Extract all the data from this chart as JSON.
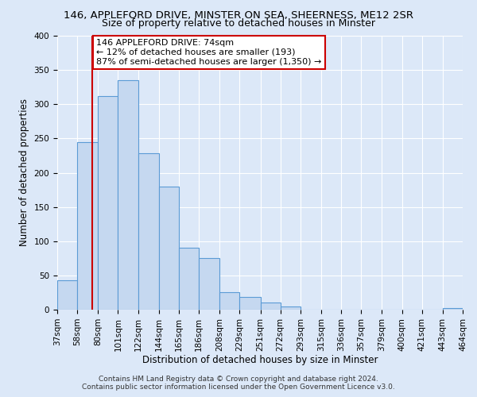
{
  "title": "146, APPLEFORD DRIVE, MINSTER ON SEA, SHEERNESS, ME12 2SR",
  "subtitle": "Size of property relative to detached houses in Minster",
  "xlabel": "Distribution of detached houses by size in Minster",
  "ylabel": "Number of detached properties",
  "bar_edges": [
    37,
    58,
    80,
    101,
    122,
    144,
    165,
    186,
    208,
    229,
    251,
    272,
    293,
    315,
    336,
    357,
    379,
    400,
    421,
    443,
    464
  ],
  "bar_heights": [
    43,
    245,
    312,
    335,
    228,
    180,
    91,
    75,
    25,
    18,
    10,
    5,
    0,
    0,
    0,
    0,
    0,
    0,
    0,
    2
  ],
  "bar_color": "#c5d8f0",
  "bar_edge_color": "#5b9bd5",
  "reference_line_x": 74,
  "reference_line_color": "#cc0000",
  "annotation_line1": "146 APPLEFORD DRIVE: 74sqm",
  "annotation_line2": "← 12% of detached houses are smaller (193)",
  "annotation_line3": "87% of semi-detached houses are larger (1,350) →",
  "annotation_box_facecolor": "#ffffff",
  "annotation_box_edgecolor": "#cc0000",
  "ylim": [
    0,
    400
  ],
  "yticks": [
    0,
    50,
    100,
    150,
    200,
    250,
    300,
    350,
    400
  ],
  "footer_line1": "Contains HM Land Registry data © Crown copyright and database right 2024.",
  "footer_line2": "Contains public sector information licensed under the Open Government Licence v3.0.",
  "fig_facecolor": "#dce8f8",
  "plot_facecolor": "#dce8f8",
  "grid_color": "#ffffff",
  "title_fontsize": 9.5,
  "subtitle_fontsize": 9,
  "ylabel_fontsize": 8.5,
  "xlabel_fontsize": 8.5,
  "tick_fontsize": 7.5,
  "annotation_fontsize": 8,
  "footer_fontsize": 6.5
}
